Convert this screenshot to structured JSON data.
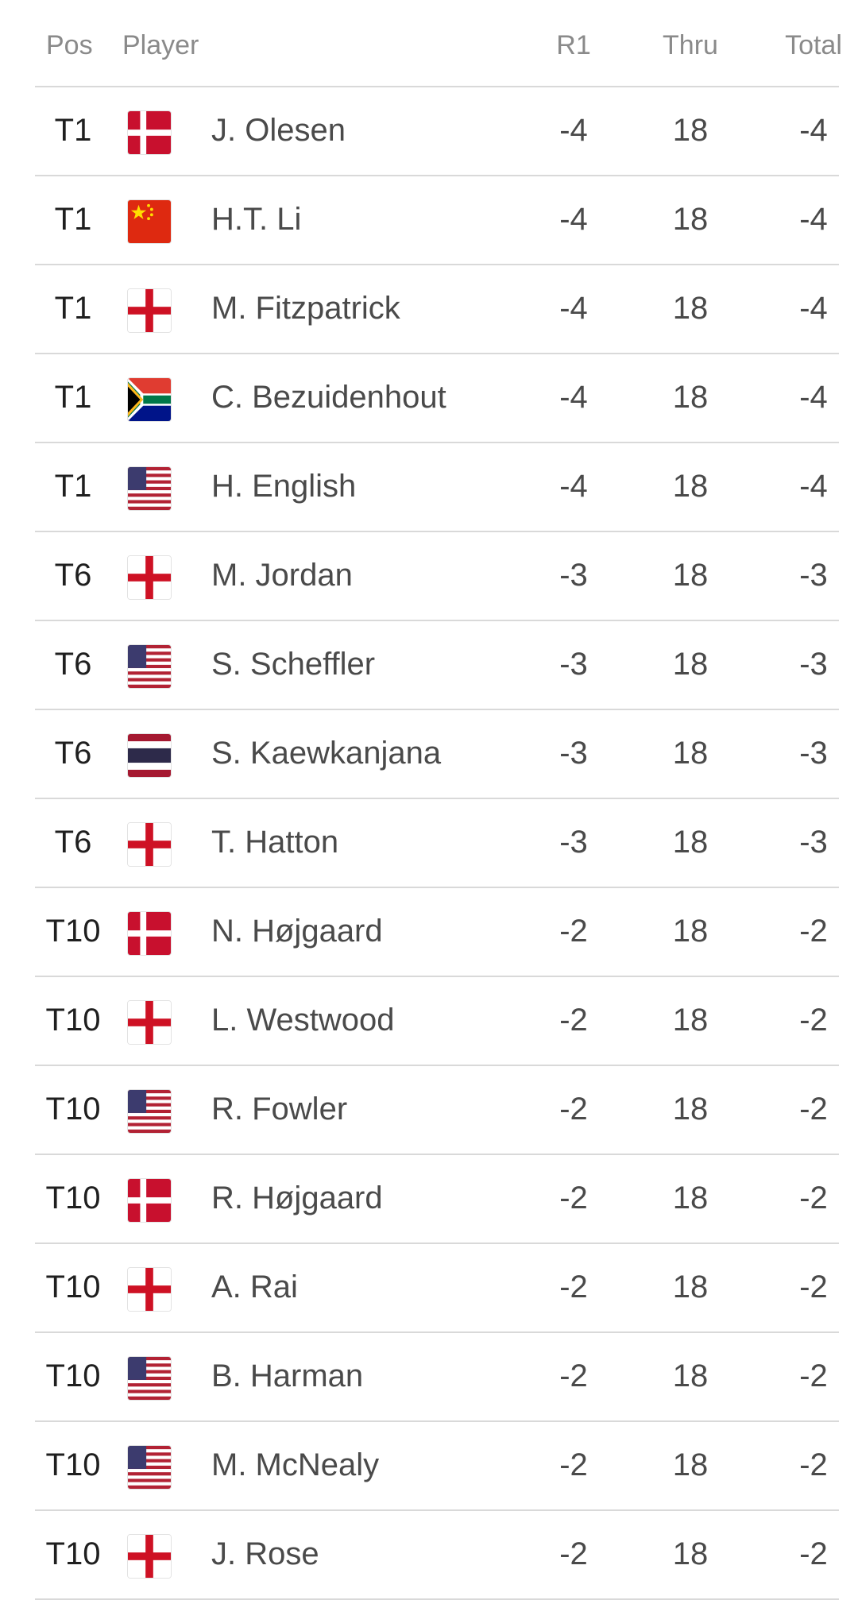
{
  "header": {
    "pos": "Pos",
    "player": "Player",
    "r1": "R1",
    "thru": "Thru",
    "total": "Total"
  },
  "rows": [
    {
      "pos": "T1",
      "flag": "denmark-flag-icon",
      "name": "J. Olesen",
      "r1": "-4",
      "thru": "18",
      "total": "-4"
    },
    {
      "pos": "T1",
      "flag": "china-flag-icon",
      "name": "H.T. Li",
      "r1": "-4",
      "thru": "18",
      "total": "-4"
    },
    {
      "pos": "T1",
      "flag": "england-flag-icon",
      "name": "M. Fitzpatrick",
      "r1": "-4",
      "thru": "18",
      "total": "-4"
    },
    {
      "pos": "T1",
      "flag": "south-africa-flag-icon",
      "name": "C. Bezuidenhout",
      "r1": "-4",
      "thru": "18",
      "total": "-4"
    },
    {
      "pos": "T1",
      "flag": "usa-flag-icon",
      "name": "H. English",
      "r1": "-4",
      "thru": "18",
      "total": "-4"
    },
    {
      "pos": "T6",
      "flag": "england-flag-icon",
      "name": "M. Jordan",
      "r1": "-3",
      "thru": "18",
      "total": "-3"
    },
    {
      "pos": "T6",
      "flag": "usa-flag-icon",
      "name": "S. Scheffler",
      "r1": "-3",
      "thru": "18",
      "total": "-3"
    },
    {
      "pos": "T6",
      "flag": "thailand-flag-icon",
      "name": "S. Kaewkanjana",
      "r1": "-3",
      "thru": "18",
      "total": "-3"
    },
    {
      "pos": "T6",
      "flag": "england-flag-icon",
      "name": "T. Hatton",
      "r1": "-3",
      "thru": "18",
      "total": "-3"
    },
    {
      "pos": "T10",
      "flag": "denmark-flag-icon",
      "name": "N. Højgaard",
      "r1": "-2",
      "thru": "18",
      "total": "-2"
    },
    {
      "pos": "T10",
      "flag": "england-flag-icon",
      "name": "L. Westwood",
      "r1": "-2",
      "thru": "18",
      "total": "-2"
    },
    {
      "pos": "T10",
      "flag": "usa-flag-icon",
      "name": "R. Fowler",
      "r1": "-2",
      "thru": "18",
      "total": "-2"
    },
    {
      "pos": "T10",
      "flag": "denmark-flag-icon",
      "name": "R. Højgaard",
      "r1": "-2",
      "thru": "18",
      "total": "-2"
    },
    {
      "pos": "T10",
      "flag": "england-flag-icon",
      "name": "A. Rai",
      "r1": "-2",
      "thru": "18",
      "total": "-2"
    },
    {
      "pos": "T10",
      "flag": "usa-flag-icon",
      "name": "B. Harman",
      "r1": "-2",
      "thru": "18",
      "total": "-2"
    },
    {
      "pos": "T10",
      "flag": "usa-flag-icon",
      "name": "M. McNealy",
      "r1": "-2",
      "thru": "18",
      "total": "-2"
    },
    {
      "pos": "T10",
      "flag": "england-flag-icon",
      "name": "J. Rose",
      "r1": "-2",
      "thru": "18",
      "total": "-2"
    }
  ]
}
